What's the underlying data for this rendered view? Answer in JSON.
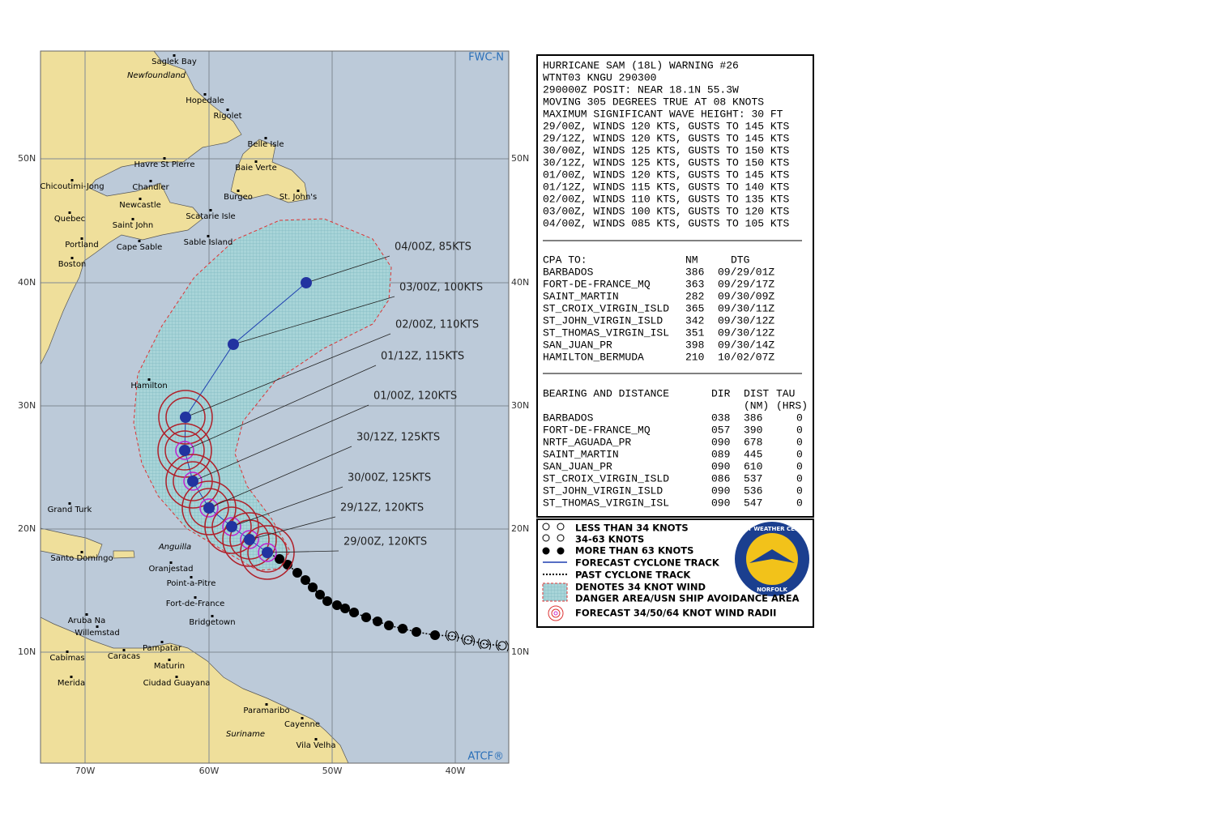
{
  "map": {
    "corner_top": "FWC-N",
    "corner_bottom": "ATCF®",
    "lat_labels": [
      "50N",
      "40N",
      "30N",
      "20N",
      "10N"
    ],
    "lon_labels": [
      "70W",
      "60W",
      "50W",
      "40W"
    ],
    "places": [
      "Saglek Bay",
      "Newfoundland",
      "Hopedale",
      "Rigolet",
      "Belle Isle",
      "Havre St Pierre",
      "Baie Verte",
      "Chicoutimi-Jong",
      "Chandler",
      "Burgeo",
      "St. John's",
      "Newcastle",
      "Quebec",
      "Scatarie Isle",
      "Saint John",
      "Portland",
      "Cape Sable",
      "Sable Island",
      "Boston",
      "Hamilton",
      "Grand Turk",
      "Anguilla",
      "Santo Domingo",
      "Oranjestad",
      "Point-a-Pitre",
      "Fort-de-France",
      "Bridgetown",
      "Aruba Na",
      "Willemstad",
      "Pampatar",
      "Caracas",
      "Cabimas",
      "Maturin",
      "Merida",
      "Ciudad Guayana",
      "Paramaribo",
      "Suriname",
      "Cayenne",
      "Vila Velha"
    ],
    "track_labels": [
      "04/00Z,  85KTS",
      "03/00Z, 100KTS",
      "02/00Z, 110KTS",
      "01/12Z, 115KTS",
      "01/00Z, 120KTS",
      "30/12Z, 125KTS",
      "30/00Z, 125KTS",
      "29/12Z, 120KTS",
      "29/00Z, 120KTS"
    ]
  },
  "warning": {
    "lines": [
      "HURRICANE SAM (18L) WARNING #26",
      "WTNT03 KNGU 290300",
      "290000Z POSIT: NEAR 18.1N 55.3W",
      "MOVING 305 DEGREES TRUE AT 08 KNOTS",
      "MAXIMUM SIGNIFICANT WAVE HEIGHT: 30 FT",
      "29/00Z, WINDS 120 KTS, GUSTS TO 145 KTS",
      "29/12Z, WINDS 120 KTS, GUSTS TO 145 KTS",
      "30/00Z, WINDS 125 KTS, GUSTS TO 150 KTS",
      "30/12Z, WINDS 125 KTS, GUSTS TO 150 KTS",
      "01/00Z, WINDS 120 KTS, GUSTS TO 145 KTS",
      "01/12Z, WINDS 115 KTS, GUSTS TO 140 KTS",
      "02/00Z, WINDS 110 KTS, GUSTS TO 135 KTS",
      "03/00Z, WINDS 100 KTS, GUSTS TO 120 KTS",
      "04/00Z, WINDS 085 KTS, GUSTS TO 105 KTS"
    ]
  },
  "cpa": {
    "header": [
      "CPA TO:",
      "NM",
      "DTG"
    ],
    "rows": [
      [
        "BARBADOS",
        "386",
        "09/29/01Z"
      ],
      [
        "FORT-DE-FRANCE_MQ",
        "363",
        "09/29/17Z"
      ],
      [
        "SAINT_MARTIN",
        "282",
        "09/30/09Z"
      ],
      [
        "ST_CROIX_VIRGIN_ISLD",
        "365",
        "09/30/11Z"
      ],
      [
        "ST_JOHN_VIRGIN_ISLD",
        "342",
        "09/30/12Z"
      ],
      [
        "ST_THOMAS_VIRGIN_ISL",
        "351",
        "09/30/12Z"
      ],
      [
        "SAN_JUAN_PR",
        "398",
        "09/30/14Z"
      ],
      [
        "HAMILTON_BERMUDA",
        "210",
        "10/02/07Z"
      ]
    ]
  },
  "bearing": {
    "header": [
      "BEARING AND DISTANCE",
      "DIR",
      "DIST",
      "TAU"
    ],
    "subheader": [
      "(NM)",
      "(HRS)"
    ],
    "rows": [
      [
        "BARBADOS",
        "038",
        "386",
        "0"
      ],
      [
        "FORT-DE-FRANCE_MQ",
        "057",
        "390",
        "0"
      ],
      [
        "NRTF_AGUADA_PR",
        "090",
        "678",
        "0"
      ],
      [
        "SAINT_MARTIN",
        "089",
        "445",
        "0"
      ],
      [
        "SAN_JUAN_PR",
        "090",
        "610",
        "0"
      ],
      [
        "ST_CROIX_VIRGIN_ISLD",
        "086",
        "537",
        "0"
      ],
      [
        "ST_JOHN_VIRGIN_ISLD",
        "090",
        "536",
        "0"
      ],
      [
        "ST_THOMAS_VIRGIN_ISL",
        "090",
        "547",
        "0"
      ]
    ]
  },
  "legend": {
    "items": [
      "LESS THAN 34 KNOTS",
      "34-63 KNOTS",
      "MORE THAN 63 KNOTS",
      "FORECAST CYCLONE TRACK",
      "PAST CYCLONE TRACK",
      "DENOTES 34 KNOT WIND",
      "DANGER AREA/USN SHIP AVOIDANCE AREA",
      "FORECAST 34/50/64 KNOT WIND RADII"
    ],
    "logo": [
      "FLEET WEATHER CENTER",
      "NORFOLK"
    ]
  }
}
